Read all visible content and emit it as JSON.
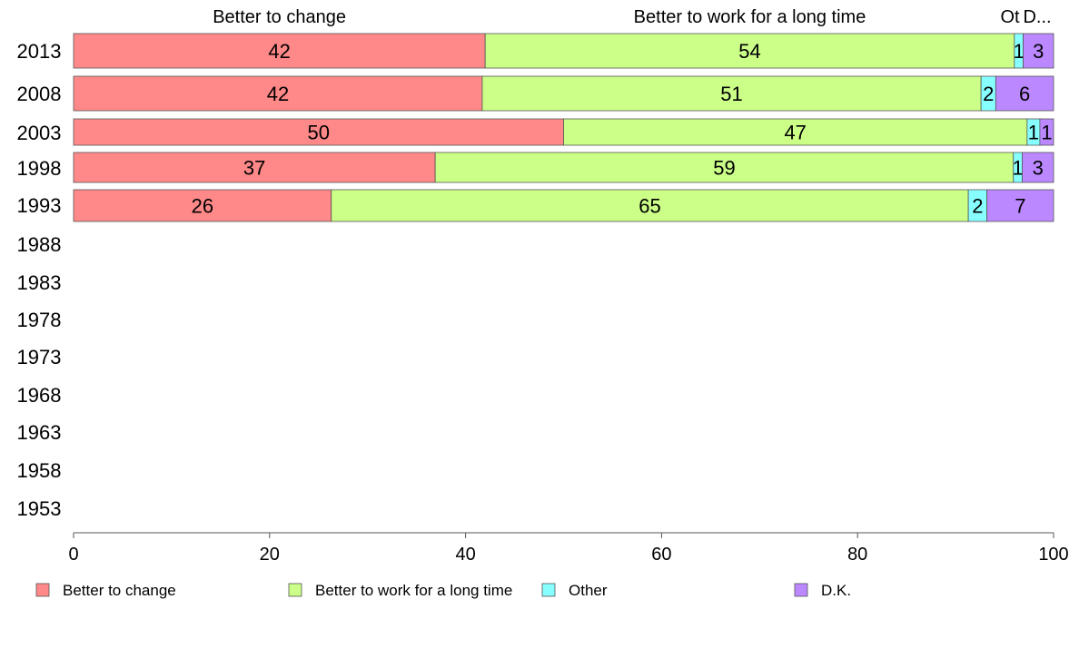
{
  "chart_data": {
    "type": "bar",
    "orientation": "horizontal",
    "stacked": true,
    "categories": [
      "2013",
      "2008",
      "2003",
      "1998",
      "1993",
      "1988",
      "1983",
      "1978",
      "1973",
      "1968",
      "1963",
      "1958",
      "1953"
    ],
    "series": [
      {
        "name": "Better to change",
        "color": "#ff8888",
        "values": [
          42,
          41.7,
          50,
          36.9,
          26.3,
          null,
          null,
          null,
          null,
          null,
          null,
          null,
          null
        ],
        "labels": [
          "42",
          "42",
          "50",
          "37",
          "26",
          "",
          "",
          "",
          "",
          "",
          "",
          "",
          ""
        ]
      },
      {
        "name": "Better to work for a long time",
        "color": "#ccff88",
        "values": [
          54,
          50.9,
          47.3,
          59,
          65,
          null,
          null,
          null,
          null,
          null,
          null,
          null,
          null
        ],
        "labels": [
          "54",
          "51",
          "47",
          "59",
          "65",
          "",
          "",
          "",
          "",
          "",
          "",
          "",
          ""
        ]
      },
      {
        "name": "Other",
        "color": "#88ffff",
        "values": [
          0.9,
          1.5,
          1.3,
          0.9,
          1.9,
          null,
          null,
          null,
          null,
          null,
          null,
          null,
          null
        ],
        "labels": [
          "1",
          "2",
          "1",
          "1",
          "2",
          "",
          "",
          "",
          "",
          "",
          "",
          "",
          ""
        ]
      },
      {
        "name": "D.K.",
        "color": "#bb88ff",
        "values": [
          3.1,
          5.9,
          1.4,
          3.2,
          6.8,
          null,
          null,
          null,
          null,
          null,
          null,
          null,
          null
        ],
        "labels": [
          "3",
          "6",
          "1",
          "3",
          "7",
          "",
          "",
          "",
          "",
          "",
          "",
          "",
          ""
        ]
      }
    ],
    "top_labels": [
      "Better to change",
      "Better to work for a long time",
      "Ot",
      "D..."
    ],
    "xlim": [
      0,
      100
    ],
    "xticks": [
      "0",
      "20",
      "40",
      "60",
      "80",
      "100"
    ],
    "grid": false,
    "legend_position": "bottom",
    "colors": {
      "bar_border": "#555555",
      "axis": "#555555"
    }
  }
}
